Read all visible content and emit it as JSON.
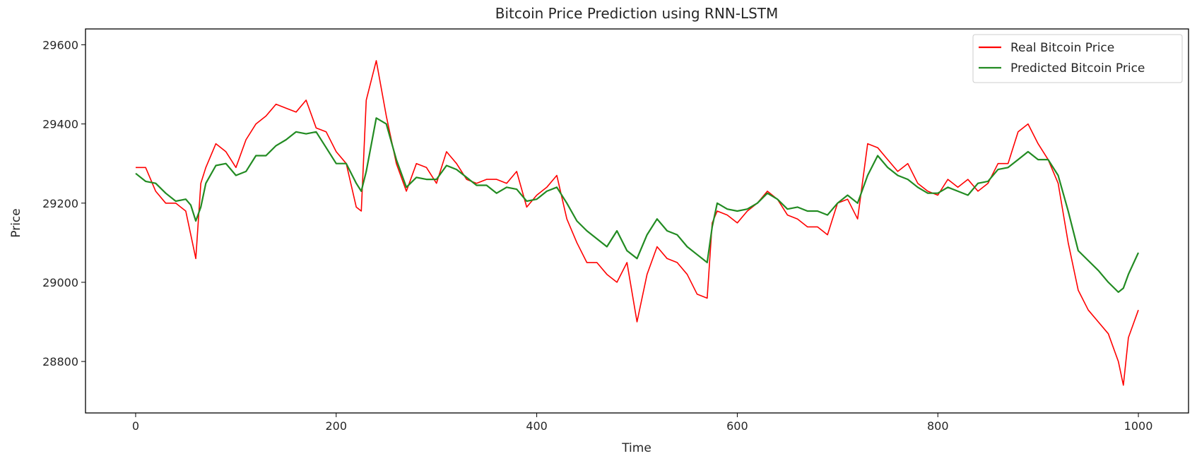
{
  "chart_data": {
    "type": "line",
    "title": "Bitcoin Price Prediction using RNN-LSTM",
    "xlabel": "Time",
    "ylabel": "Price",
    "xlim": [
      -50,
      1050
    ],
    "ylim": [
      28670,
      29640
    ],
    "xticks": [
      0,
      200,
      400,
      600,
      800,
      1000
    ],
    "yticks": [
      28800,
      29000,
      29200,
      29400,
      29600
    ],
    "grid": false,
    "legend_position": "top-right",
    "series": [
      {
        "name": "Real Bitcoin Price",
        "color": "#ff0000",
        "x": [
          0,
          10,
          20,
          30,
          40,
          50,
          55,
          60,
          65,
          70,
          80,
          90,
          100,
          110,
          120,
          130,
          140,
          150,
          160,
          170,
          180,
          190,
          200,
          210,
          220,
          225,
          230,
          240,
          250,
          260,
          270,
          280,
          290,
          300,
          310,
          320,
          330,
          340,
          350,
          360,
          370,
          380,
          390,
          400,
          410,
          420,
          430,
          440,
          450,
          460,
          470,
          480,
          490,
          500,
          510,
          520,
          530,
          540,
          550,
          560,
          570,
          575,
          580,
          590,
          600,
          610,
          620,
          630,
          640,
          650,
          660,
          670,
          680,
          690,
          700,
          710,
          720,
          730,
          740,
          750,
          760,
          770,
          780,
          790,
          800,
          810,
          820,
          830,
          840,
          850,
          860,
          870,
          880,
          890,
          900,
          910,
          920,
          930,
          940,
          950,
          960,
          970,
          980,
          985,
          990,
          1000
        ],
        "y": [
          29290,
          29290,
          29230,
          29200,
          29200,
          29180,
          29120,
          29060,
          29250,
          29290,
          29350,
          29330,
          29290,
          29360,
          29400,
          29420,
          29450,
          29440,
          29430,
          29460,
          29390,
          29380,
          29330,
          29300,
          29190,
          29180,
          29460,
          29560,
          29420,
          29300,
          29230,
          29300,
          29290,
          29250,
          29330,
          29300,
          29260,
          29250,
          29260,
          29260,
          29250,
          29280,
          29190,
          29220,
          29240,
          29270,
          29160,
          29100,
          29050,
          29050,
          29020,
          29000,
          29050,
          28900,
          29020,
          29090,
          29060,
          29050,
          29020,
          28970,
          28960,
          29150,
          29180,
          29170,
          29150,
          29180,
          29200,
          29230,
          29210,
          29170,
          29160,
          29140,
          29140,
          29120,
          29200,
          29210,
          29160,
          29350,
          29340,
          29310,
          29280,
          29300,
          29250,
          29230,
          29220,
          29260,
          29240,
          29260,
          29230,
          29250,
          29300,
          29300,
          29380,
          29400,
          29350,
          29310,
          29250,
          29100,
          28980,
          28930,
          28900,
          28870,
          28800,
          28740,
          28860,
          28930
        ]
      },
      {
        "name": "Predicted Bitcoin Price",
        "color": "#228b22",
        "x": [
          0,
          10,
          20,
          30,
          40,
          50,
          55,
          60,
          65,
          70,
          80,
          90,
          100,
          110,
          120,
          130,
          140,
          150,
          160,
          170,
          180,
          190,
          200,
          210,
          220,
          225,
          230,
          240,
          250,
          260,
          270,
          280,
          290,
          300,
          310,
          320,
          330,
          340,
          350,
          360,
          370,
          380,
          390,
          400,
          410,
          420,
          430,
          440,
          450,
          460,
          470,
          480,
          490,
          500,
          510,
          520,
          530,
          540,
          550,
          560,
          570,
          575,
          580,
          590,
          600,
          610,
          620,
          630,
          640,
          650,
          660,
          670,
          680,
          690,
          700,
          710,
          720,
          730,
          740,
          750,
          760,
          770,
          780,
          790,
          800,
          810,
          820,
          830,
          840,
          850,
          860,
          870,
          880,
          890,
          900,
          910,
          920,
          930,
          940,
          950,
          960,
          970,
          980,
          985,
          990,
          1000
        ],
        "y": [
          29275,
          29255,
          29250,
          29225,
          29205,
          29210,
          29195,
          29155,
          29190,
          29250,
          29295,
          29300,
          29270,
          29280,
          29320,
          29320,
          29345,
          29360,
          29380,
          29375,
          29380,
          29340,
          29300,
          29300,
          29250,
          29230,
          29280,
          29415,
          29400,
          29310,
          29240,
          29265,
          29260,
          29260,
          29295,
          29285,
          29265,
          29245,
          29245,
          29225,
          29240,
          29235,
          29205,
          29210,
          29230,
          29240,
          29200,
          29155,
          29130,
          29110,
          29090,
          29130,
          29080,
          29060,
          29120,
          29160,
          29130,
          29120,
          29090,
          29070,
          29050,
          29140,
          29200,
          29185,
          29180,
          29185,
          29200,
          29225,
          29210,
          29185,
          29190,
          29180,
          29180,
          29170,
          29200,
          29220,
          29200,
          29270,
          29320,
          29290,
          29270,
          29260,
          29240,
          29225,
          29225,
          29240,
          29230,
          29220,
          29250,
          29255,
          29285,
          29290,
          29310,
          29330,
          29310,
          29310,
          29270,
          29180,
          29080,
          29055,
          29030,
          29000,
          28975,
          28985,
          29020,
          29075
        ]
      }
    ]
  }
}
